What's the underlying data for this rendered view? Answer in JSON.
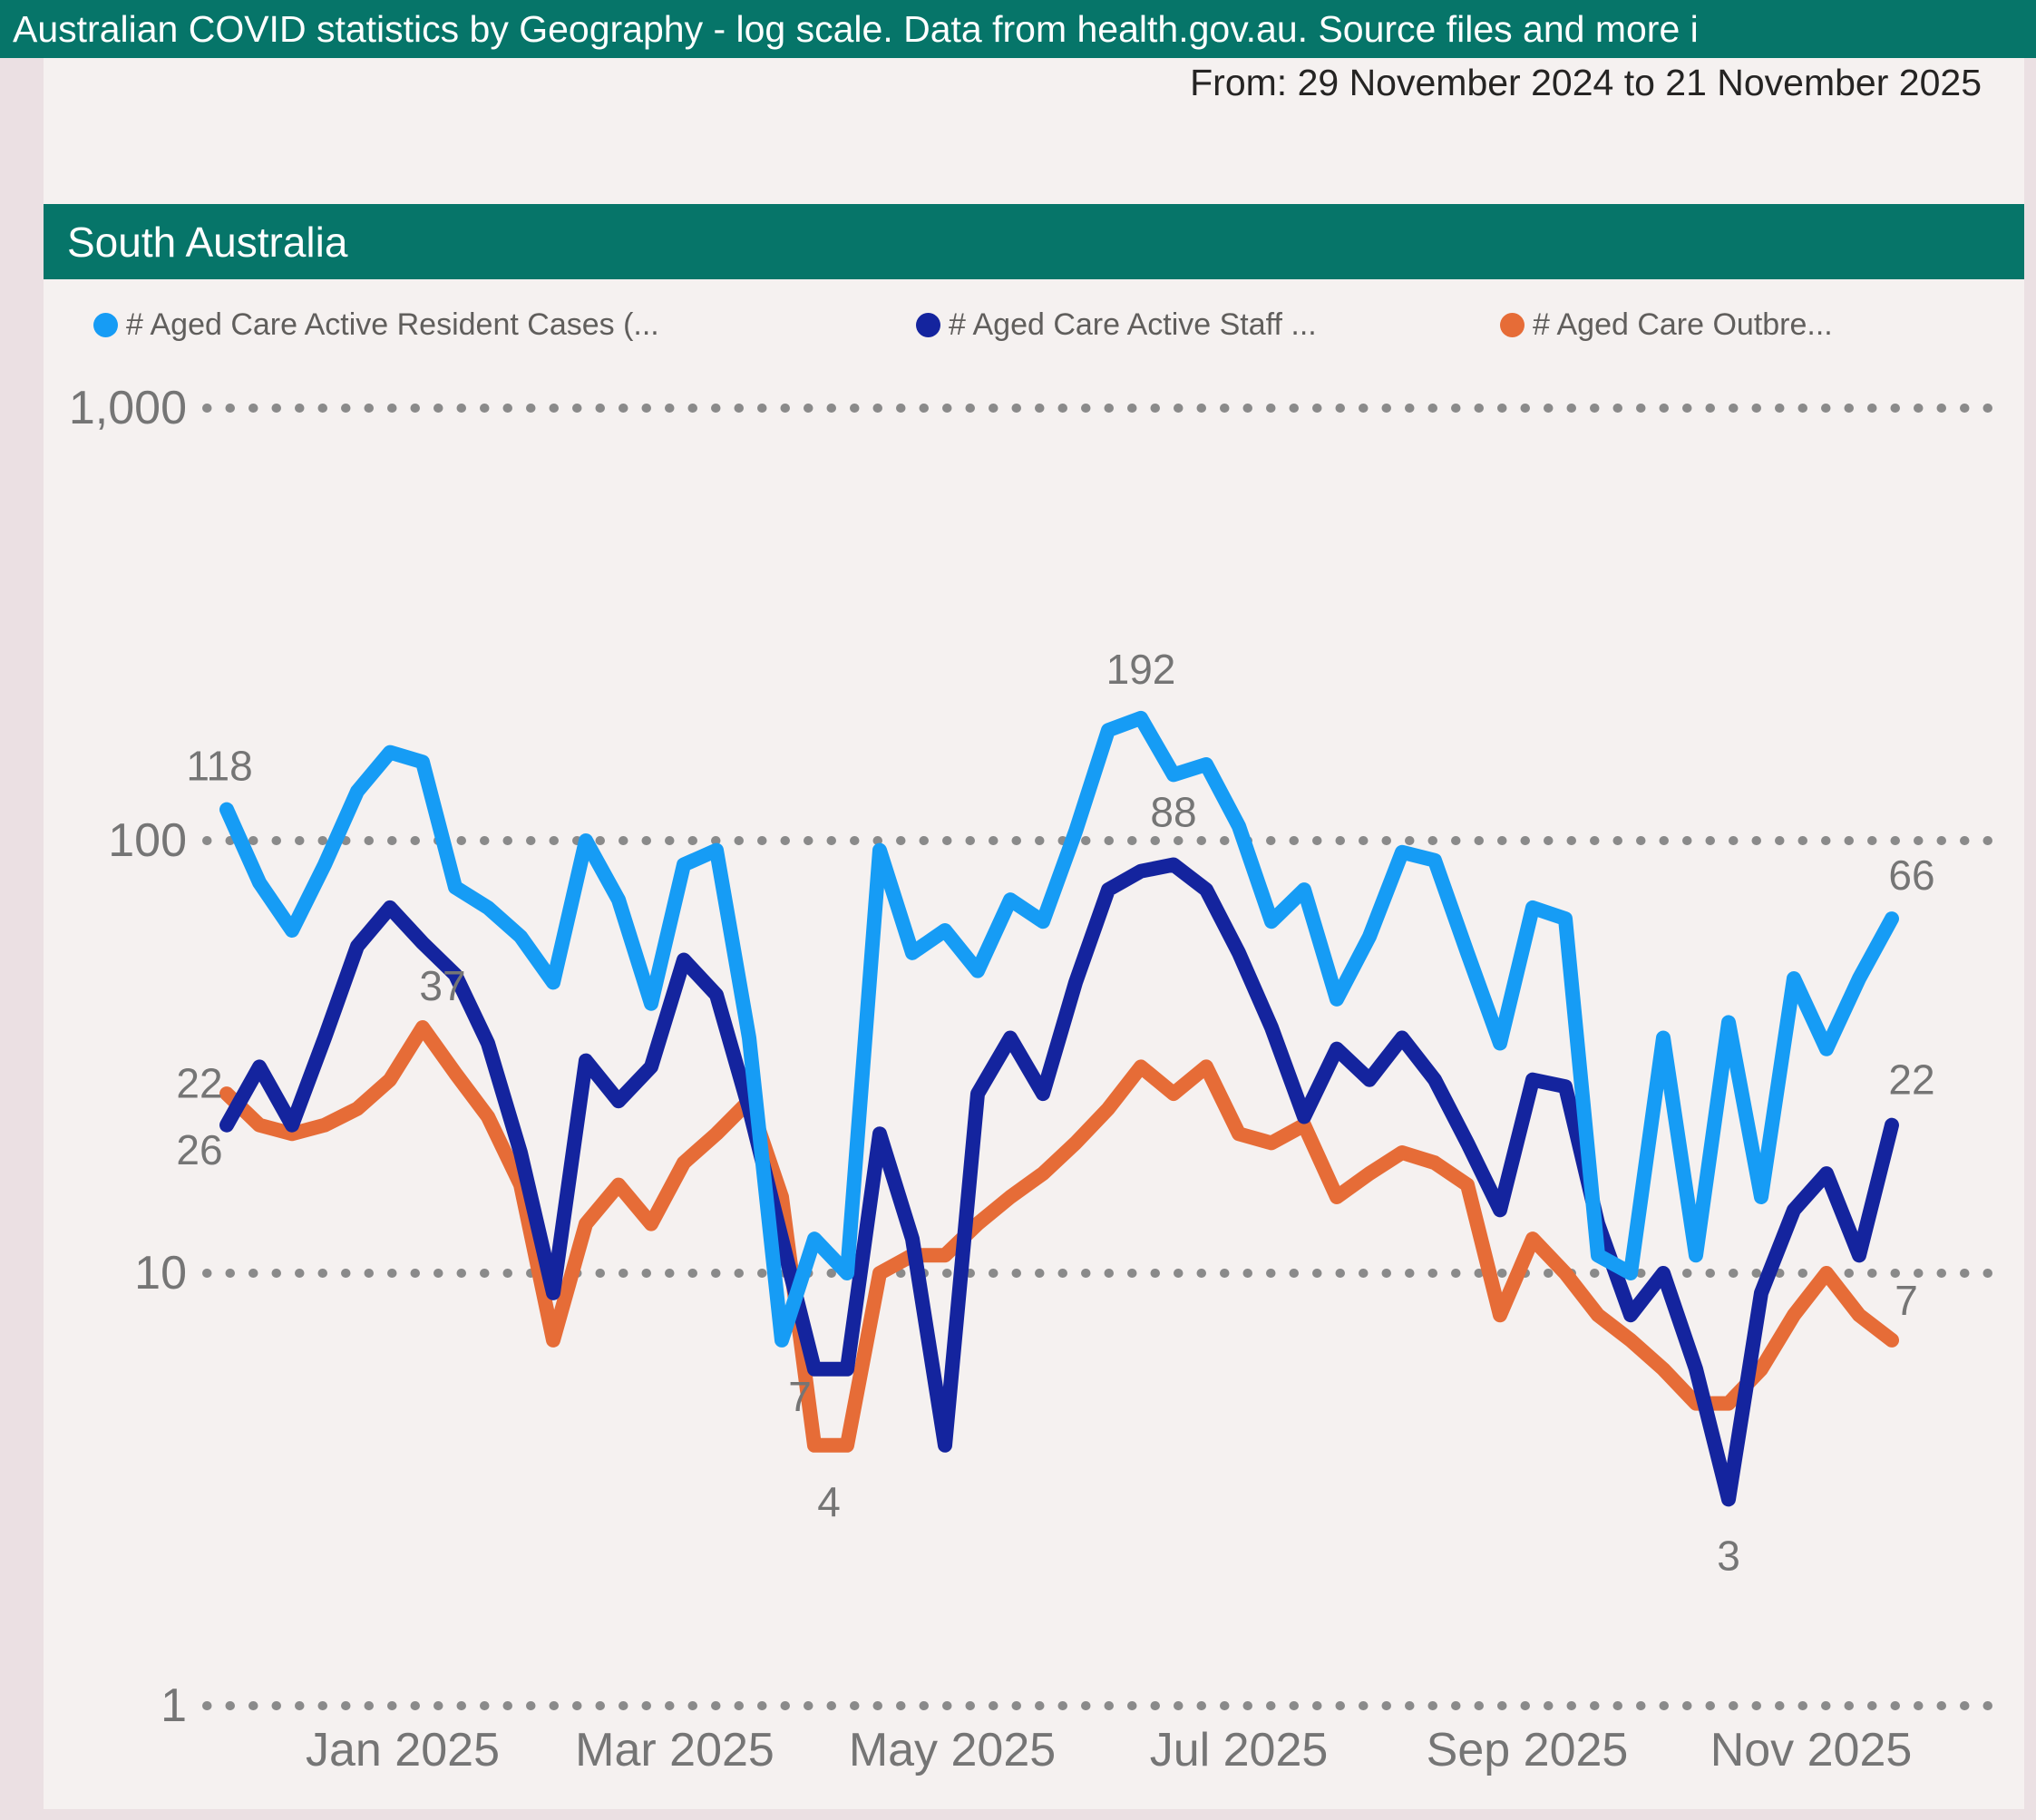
{
  "header": {
    "title": "Australian COVID statistics by Geography - log scale. Data from health.gov.au. Source files and more i"
  },
  "subheader": {
    "date_range": "From: 29 November 2024 to 21 November 2025"
  },
  "region_banner": {
    "title": "South Australia"
  },
  "colors": {
    "teal": "#067569",
    "page_background": "#EBE0E3",
    "panel_background": "#F5F1F0",
    "grid_dots": "#8A8A8A",
    "axis_text": "#757575",
    "label_text": "#757575",
    "legend_text": "#605E5C",
    "series_resident": "#169CF5",
    "series_staff": "#14249E",
    "series_outbreaks": "#E66C37"
  },
  "legend": [
    {
      "label": "# Aged Care Active Resident Cases (...",
      "color": "#169CF5",
      "x": 55
    },
    {
      "label": "# Aged Care Active Staff ...",
      "color": "#14249E",
      "x": 962
    },
    {
      "label": "# Aged Care Outbre...",
      "color": "#E66C37",
      "x": 1606
    }
  ],
  "chart_data": {
    "type": "line",
    "title": "South Australia",
    "y_scale": "log",
    "ylim": [
      1,
      1000
    ],
    "grid": "dotted",
    "legend_position": "top",
    "y_ticks": [
      {
        "value": 1000,
        "label": "1,000"
      },
      {
        "value": 100,
        "label": "100"
      },
      {
        "value": 10,
        "label": "10"
      },
      {
        "value": 1,
        "label": "1"
      }
    ],
    "x_ticks": [
      "Jan 2025",
      "Mar 2025",
      "May 2025",
      "Jul 2025",
      "Sep 2025",
      "Nov 2025"
    ],
    "x": [
      "2024-11-29",
      "2024-12-06",
      "2024-12-13",
      "2024-12-20",
      "2024-12-27",
      "2025-01-03",
      "2025-01-10",
      "2025-01-17",
      "2025-01-24",
      "2025-01-31",
      "2025-02-07",
      "2025-02-14",
      "2025-02-21",
      "2025-02-28",
      "2025-03-07",
      "2025-03-14",
      "2025-03-21",
      "2025-03-28",
      "2025-04-04",
      "2025-04-11",
      "2025-04-18",
      "2025-04-25",
      "2025-05-02",
      "2025-05-09",
      "2025-05-16",
      "2025-05-23",
      "2025-05-30",
      "2025-06-06",
      "2025-06-13",
      "2025-06-20",
      "2025-06-27",
      "2025-07-04",
      "2025-07-11",
      "2025-07-18",
      "2025-07-25",
      "2025-08-01",
      "2025-08-08",
      "2025-08-15",
      "2025-08-22",
      "2025-08-29",
      "2025-09-05",
      "2025-09-12",
      "2025-09-19",
      "2025-09-26",
      "2025-10-03",
      "2025-10-10",
      "2025-10-17",
      "2025-10-24",
      "2025-10-31",
      "2025-11-07",
      "2025-11-14",
      "2025-11-21"
    ],
    "series": [
      {
        "name": "# Aged Care Active Resident Cases",
        "color": "#169CF5",
        "values": [
          118,
          80,
          62,
          88,
          130,
          160,
          152,
          78,
          70,
          60,
          47,
          100,
          73,
          42,
          88,
          95,
          35,
          7,
          12,
          10,
          95,
          55,
          62,
          50,
          73,
          65,
          105,
          180,
          192,
          142,
          150,
          108,
          65,
          77,
          43,
          60,
          94,
          90,
          55,
          34,
          70,
          66,
          11,
          10,
          35,
          11,
          38,
          15,
          48,
          33,
          48,
          66
        ],
        "labeled_points": [
          {
            "index": 0,
            "text": "118",
            "dx": -8,
            "dy": -48
          },
          {
            "index": 28,
            "text": "192",
            "dx": 0,
            "dy": -54
          },
          {
            "index": 17,
            "text": "7",
            "dx": 20,
            "dy": 62
          },
          {
            "index": 51,
            "text": "66",
            "dx": 22,
            "dy": -48
          }
        ]
      },
      {
        "name": "# Aged Care Active Staff Cases",
        "color": "#14249E",
        "values": [
          22,
          30,
          22,
          35,
          57,
          70,
          58,
          49,
          34,
          19,
          9,
          31,
          25,
          30,
          53,
          44,
          24,
          12,
          6,
          6,
          21,
          12,
          4,
          26,
          35,
          26,
          47,
          77,
          85,
          88,
          77,
          55,
          37,
          23,
          33,
          28,
          35,
          28,
          20,
          14,
          28,
          27,
          13,
          8,
          10,
          6,
          3,
          9,
          14,
          17,
          11,
          22
        ],
        "labeled_points": [
          {
            "index": 0,
            "text": "22",
            "dx": -30,
            "dy": -46
          },
          {
            "index": 29,
            "text": "88",
            "dx": 0,
            "dy": -58
          },
          {
            "index": 46,
            "text": "3",
            "dx": 0,
            "dy": 62
          },
          {
            "index": 51,
            "text": "22",
            "dx": 22,
            "dy": -50
          }
        ]
      },
      {
        "name": "# Aged Care Outbreaks",
        "color": "#E66C37",
        "values": [
          26,
          22,
          21,
          22,
          24,
          28,
          37,
          29,
          23,
          16,
          7,
          13,
          16,
          13,
          18,
          21,
          25,
          15,
          4,
          4,
          10,
          11,
          11,
          13,
          15,
          17,
          20,
          24,
          30,
          26,
          30,
          21,
          20,
          22,
          15,
          17,
          19,
          18,
          16,
          8,
          12,
          10,
          8,
          7,
          6,
          5,
          5,
          6,
          8,
          10,
          8,
          7
        ],
        "labeled_points": [
          {
            "index": 0,
            "text": "26",
            "dx": -30,
            "dy": 62
          },
          {
            "index": 6,
            "text": "37",
            "dx": 22,
            "dy": -46
          },
          {
            "index": 18,
            "text": "4",
            "dx": 16,
            "dy": 62
          },
          {
            "index": 51,
            "text": "7",
            "dx": 16,
            "dy": -44
          }
        ]
      }
    ]
  }
}
